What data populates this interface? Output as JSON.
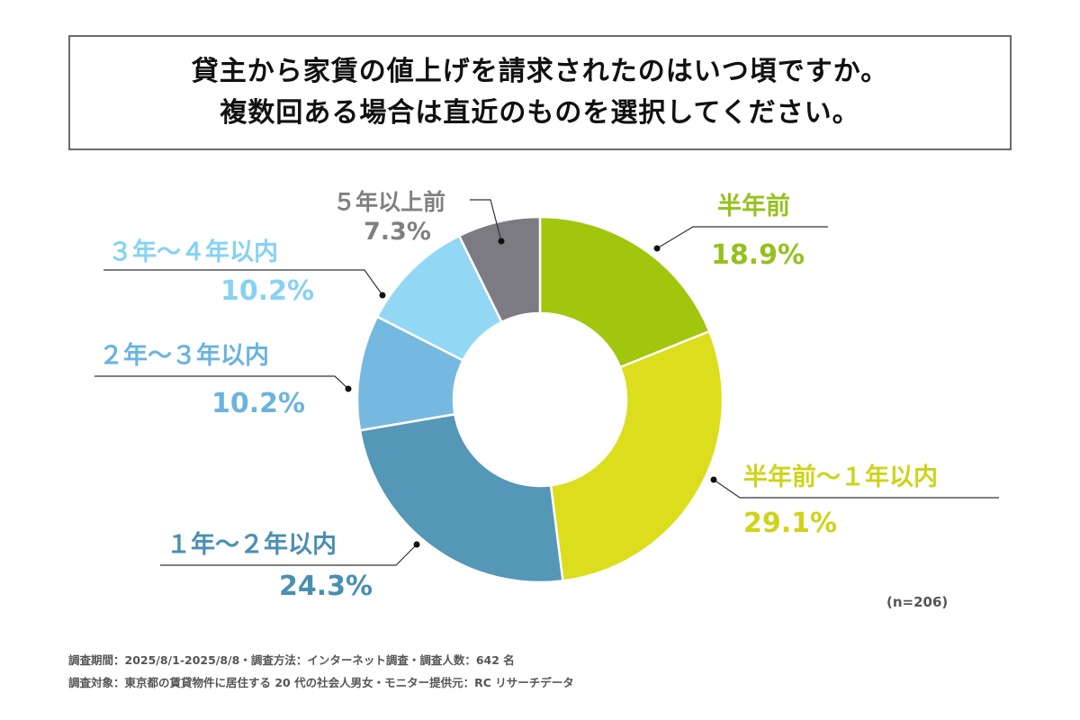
{
  "title": {
    "line1": "貸主から家賃の値上げを請求されたのはいつ頃ですか。",
    "line2": "複数回ある場合は直近のものを選択してください。"
  },
  "chart_data": {
    "type": "donut",
    "categories": [
      "半年前",
      "半年前～１年以内",
      "１年～２年以内",
      "２年～３年以内",
      "３年～４年以内",
      "５年以上前"
    ],
    "values": [
      18.9,
      29.1,
      24.3,
      10.2,
      10.2,
      7.3
    ],
    "value_labels": [
      "18.9%",
      "29.1%",
      "24.3%",
      "10.2%",
      "10.2%",
      "7.3%"
    ],
    "colors": [
      "#a2c60e",
      "#dcdd1c",
      "#5597b7",
      "#76b9e0",
      "#92d8f5",
      "#7c7b82"
    ],
    "label_colors": [
      "#95c11f",
      "#cfd31a",
      "#4a8fb3",
      "#6bb4de",
      "#86d2f3",
      "#808080"
    ],
    "start": "top",
    "direction": "clockwise"
  },
  "sample_size": "(n=206)",
  "footnotes": [
    "調査期間：2025/8/1-2025/8/8・調査方法：インターネット調査・調査人数：642 名",
    "調査対象：東京都の賃貸物件に居住する 20 代の社会人男女・モニター提供元：RC リサーチデータ"
  ]
}
